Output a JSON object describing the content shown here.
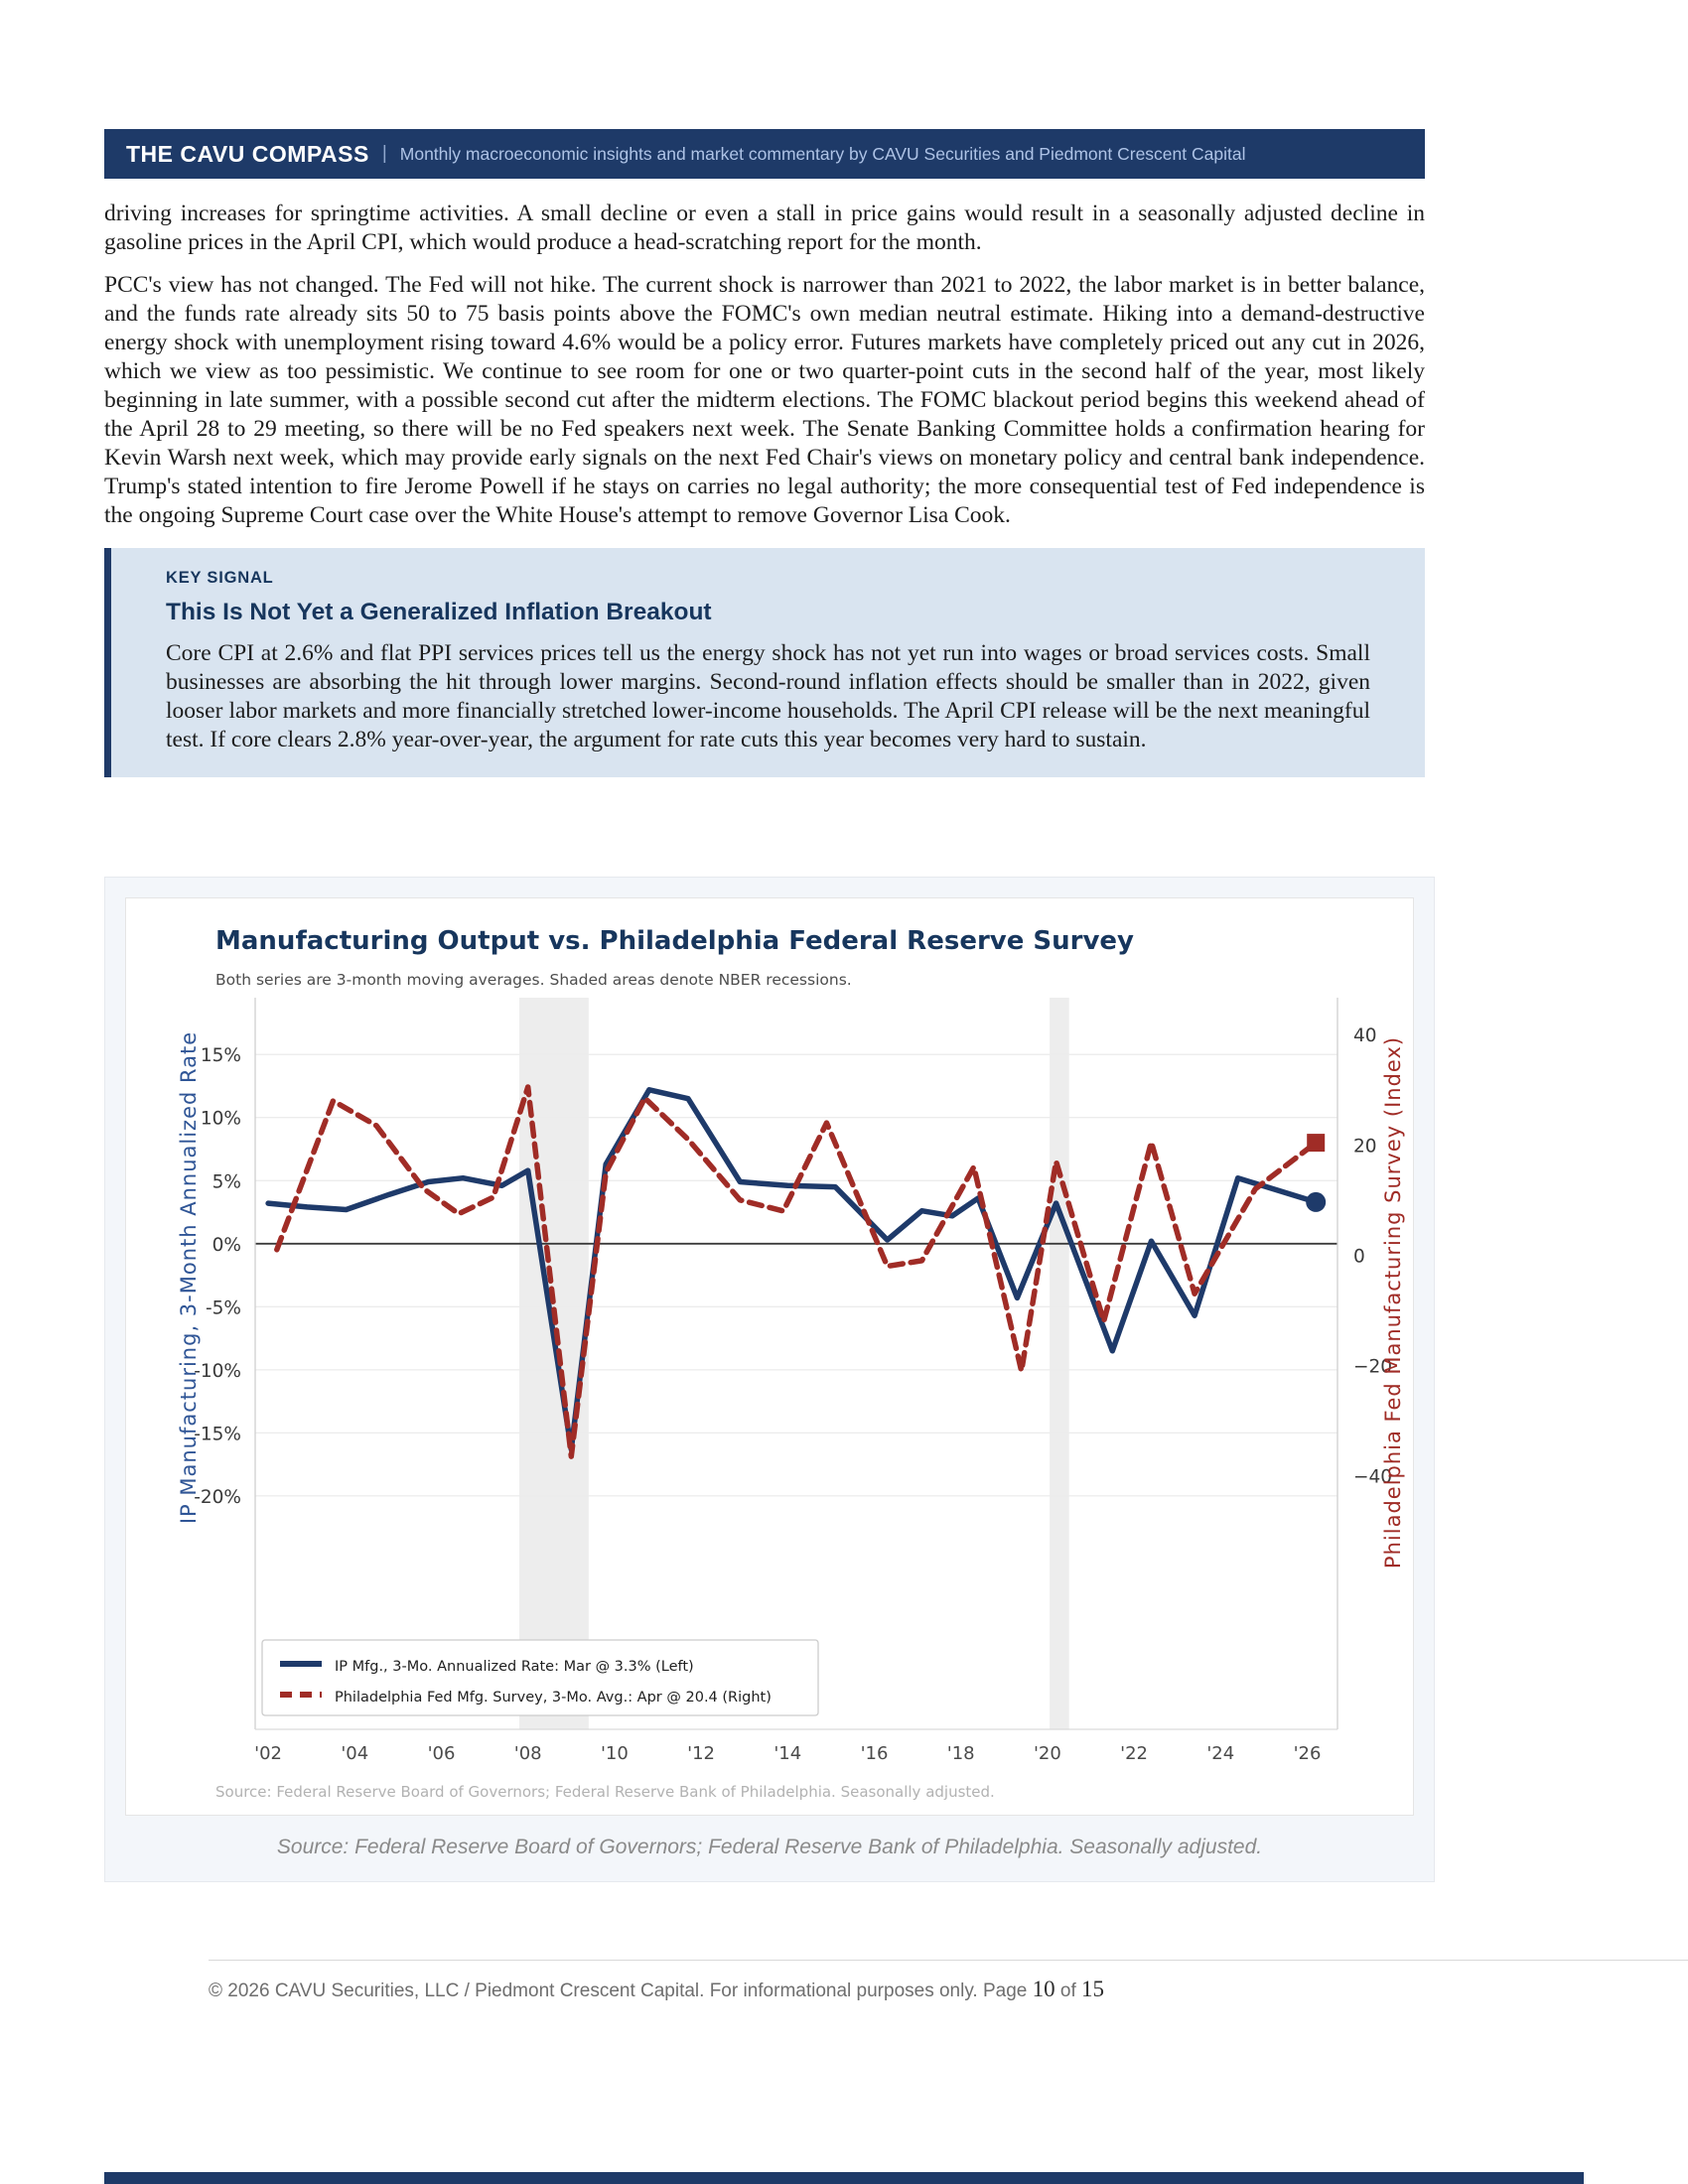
{
  "banner": {
    "title": "THE CAVU COMPASS",
    "separator": "|",
    "tagline": "Monthly macroeconomic insights and market commentary by CAVU Securities and Piedmont Crescent Capital"
  },
  "body": {
    "paragraph_1": "driving increases for springtime activities. A small decline or even a stall in price gains would result in a seasonally adjusted decline in gasoline prices in the April CPI, which would produce a head-scratching report for the month.",
    "paragraph_2": "PCC's view has not changed. The Fed will not hike. The current shock is narrower than 2021 to 2022, the labor market is in better balance, and the funds rate already sits 50 to 75 basis points above the FOMC's own median neutral estimate. Hiking into a demand-destructive energy shock with unemployment rising toward 4.6% would be a policy error. Futures markets have completely priced out any cut in 2026, which we view as too pessimistic. We continue to see room for one or two quarter-point cuts in the second half of the year, most likely beginning in late summer, with a possible second cut after the midterm elections. The FOMC blackout period begins this weekend ahead of the April 28 to 29 meeting, so there will be no Fed speakers next week. The Senate Banking Committee holds a confirmation hearing for Kevin Warsh next week, which may provide early signals on the next Fed Chair's views on monetary policy and central bank independence. Trump's stated intention to fire Jerome Powell if he stays on carries no legal authority; the more consequential test of Fed independence is the ongoing Supreme Court case over the White House's attempt to remove Governor Lisa Cook."
  },
  "key_signal": {
    "label": "KEY SIGNAL",
    "heading": "This Is Not Yet a Generalized Inflation Breakout",
    "body": "Core CPI at 2.6% and flat PPI services prices tell us the energy shock has not yet run into wages or broad services costs. Small businesses are absorbing the hit through lower margins. Second-round inflation effects should be smaller than in 2022, given looser labor markets and more financially stretched lower-income households. The April CPI release will be the next meaningful test. If core clears 2.8% year-over-year, the argument for rate cuts this year becomes very hard to sustain."
  },
  "chart_data": {
    "type": "line",
    "title": "Manufacturing Output vs. Philadelphia Federal Reserve Survey",
    "subtitle": "Both series are 3-month moving averages. Shaded areas denote NBER recessions.",
    "source_note": "Source: Federal Reserve Board of Governors; Federal Reserve Bank of Philadelphia. Seasonally adjusted.",
    "grid": true,
    "legend_position": "lower-left",
    "x_axis": {
      "range": [
        2001.7,
        2026.7
      ],
      "ticks": [
        "'02",
        "'04",
        "'06",
        "'08",
        "'10",
        "'12",
        "'14",
        "'16",
        "'18",
        "'20",
        "'22",
        "'24",
        "'26"
      ],
      "tick_years": [
        2002,
        2004,
        2006,
        2008,
        2010,
        2012,
        2014,
        2016,
        2018,
        2020,
        2022,
        2024,
        2026
      ]
    },
    "left_axis": {
      "label": "IP Manufacturing, 3-Month Annualized Rate",
      "color": "#2f5596",
      "ylim": [
        -38.5,
        19.5
      ],
      "ticks": [
        "15%",
        "10%",
        "5%",
        "0%",
        "-5%",
        "-10%",
        "-15%",
        "-20%"
      ],
      "tick_values": [
        15,
        10,
        5,
        0,
        -5,
        -10,
        -15,
        -20
      ]
    },
    "right_axis": {
      "label": "Philadelphia Fed Manufacturing Survey (Index)",
      "color": "#a02c26",
      "ylim": [
        -86,
        46.7
      ],
      "ticks": [
        "40",
        "20",
        "0",
        "−20",
        "−40"
      ],
      "tick_values": [
        40,
        20,
        0,
        -20,
        -40
      ]
    },
    "recessions": [
      [
        2007.8,
        2009.4
      ],
      [
        2020.05,
        2020.5
      ]
    ],
    "series": [
      {
        "id": "ip-mfg-line",
        "name": "IP Mfg., 3-Mo. Annualized Rate: Mar @ 3.3% (Left)",
        "axis": "left",
        "color": "#1e3a6a",
        "dash": null,
        "endpoint": "circle",
        "latest": {
          "month": "Mar",
          "value": 3.3
        },
        "points": [
          [
            2002.0,
            3.2
          ],
          [
            2002.9,
            2.9
          ],
          [
            2003.8,
            2.7
          ],
          [
            2004.8,
            3.9
          ],
          [
            2005.7,
            4.9
          ],
          [
            2006.5,
            5.2
          ],
          [
            2007.4,
            4.6
          ],
          [
            2008.0,
            5.8
          ],
          [
            2009.0,
            -16.3
          ],
          [
            2009.8,
            6.3
          ],
          [
            2010.8,
            12.2
          ],
          [
            2011.7,
            11.5
          ],
          [
            2012.9,
            4.9
          ],
          [
            2014.0,
            4.6
          ],
          [
            2015.1,
            4.5
          ],
          [
            2016.3,
            0.3
          ],
          [
            2017.1,
            2.6
          ],
          [
            2017.8,
            2.2
          ],
          [
            2018.4,
            3.6
          ],
          [
            2019.3,
            -4.3
          ],
          [
            2020.2,
            3.2
          ],
          [
            2021.5,
            -8.5
          ],
          [
            2022.4,
            0.2
          ],
          [
            2023.4,
            -5.7
          ],
          [
            2024.4,
            5.2
          ],
          [
            2026.2,
            3.3
          ]
        ]
      },
      {
        "id": "philly-fed-line",
        "name": "Philadelphia Fed Mfg. Survey, 3-Mo. Avg.: Apr @ 20.4 (Right)",
        "axis": "right",
        "color": "#a02c26",
        "dash": "13 8",
        "endpoint": "square",
        "latest": {
          "month": "Apr",
          "value": 20.4
        },
        "points": [
          [
            2002.2,
            1
          ],
          [
            2003.5,
            28
          ],
          [
            2004.5,
            23.5
          ],
          [
            2005.6,
            12
          ],
          [
            2006.4,
            7.5
          ],
          [
            2007.2,
            10.5
          ],
          [
            2008.0,
            30.5
          ],
          [
            2009.0,
            -36.5
          ],
          [
            2009.8,
            15
          ],
          [
            2010.7,
            28.5
          ],
          [
            2011.7,
            21
          ],
          [
            2012.9,
            10
          ],
          [
            2013.9,
            8
          ],
          [
            2014.9,
            24
          ],
          [
            2016.3,
            -2
          ],
          [
            2017.1,
            -1
          ],
          [
            2018.3,
            16
          ],
          [
            2019.4,
            -21
          ],
          [
            2020.2,
            17
          ],
          [
            2021.3,
            -12
          ],
          [
            2022.4,
            20.5
          ],
          [
            2023.4,
            -7
          ],
          [
            2024.8,
            12
          ],
          [
            2026.2,
            20.4
          ]
        ]
      }
    ]
  },
  "figure": {
    "caption": "Source: Federal Reserve Board of Governors; Federal Reserve Bank of Philadelphia. Seasonally adjusted."
  },
  "footer": {
    "prefix": "© 2026 CAVU Securities, LLC / Piedmont Crescent Capital. For informational purposes only. Page ",
    "page_number": "10",
    "of_word": " of ",
    "page_total": "15"
  },
  "colors": {
    "banner_bg": "#1e3a68",
    "banner_tagline": "#aec3e6",
    "callout_bg": "#d9e4f0",
    "navy_accent": "#17365d",
    "ip_line": "#1e3a6a",
    "philly_line": "#a02c26",
    "recession_band": "#e4e4e4"
  }
}
